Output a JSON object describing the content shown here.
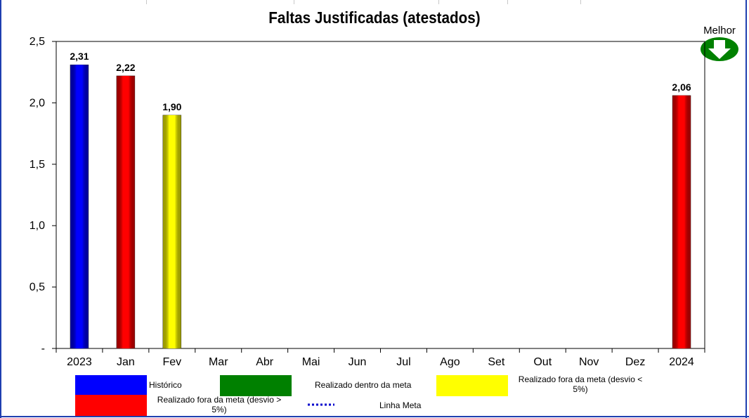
{
  "chart_data": {
    "type": "bar",
    "title": "Faltas Justificadas (atestados)",
    "categories": [
      "2023",
      "Jan",
      "Fev",
      "Mar",
      "Abr",
      "Mai",
      "Jun",
      "Jul",
      "Ago",
      "Set",
      "Out",
      "Nov",
      "Dez",
      "2024"
    ],
    "values": [
      2.31,
      2.22,
      1.9,
      null,
      null,
      null,
      null,
      null,
      null,
      null,
      null,
      null,
      null,
      2.06
    ],
    "data_labels": [
      "2,31",
      "2,22",
      "1,90",
      "",
      "",
      "",
      "",
      "",
      "",
      "",
      "",
      "",
      "",
      "2,06"
    ],
    "bar_colors": [
      "#0000ff",
      "#ff0000",
      "#ffff00",
      "",
      "",
      "",
      "",
      "",
      "",
      "",
      "",
      "",
      "",
      "#ff0000"
    ],
    "ylim": [
      0,
      2.5
    ],
    "y_ticks": [
      0,
      0.5,
      1.0,
      1.5,
      2.0,
      2.5
    ],
    "y_tick_labels": [
      "-",
      "0,5",
      "1,0",
      "1,5",
      "2,0",
      "2,5"
    ],
    "xlabel": "",
    "ylabel": "",
    "grid": false,
    "direction_indicator": {
      "label": "Melhor",
      "icon": "down-arrow-icon",
      "color": "#008000"
    }
  },
  "legend": [
    {
      "label": "Histórico",
      "color": "#0000ff",
      "kind": "swatch"
    },
    {
      "label": "Realizado dentro da meta",
      "color": "#008000",
      "kind": "swatch"
    },
    {
      "label": "Realizado fora da meta (desvio < 5%)",
      "color": "#ffff00",
      "kind": "swatch"
    },
    {
      "label": "Realizado fora da meta (desvio > 5%)",
      "color": "#ff0000",
      "kind": "swatch"
    },
    {
      "label": "Linha Meta",
      "color": "#0000cc",
      "kind": "dotted-line"
    }
  ]
}
